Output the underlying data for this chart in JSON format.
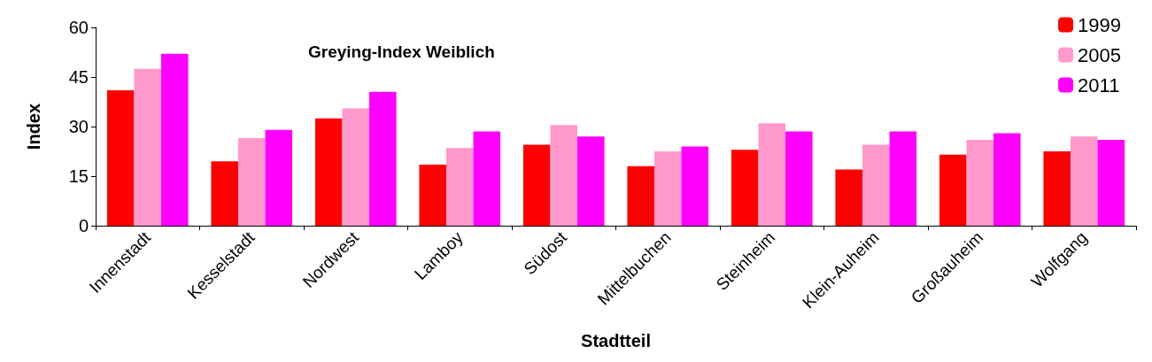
{
  "chart_data": {
    "type": "bar",
    "title": "Greying-Index Weiblich",
    "xlabel": "Stadtteil",
    "ylabel": "Index",
    "categories": [
      "Innenstadt",
      "Kesselstadt",
      "Nordwest",
      "Lamboy",
      "Südost",
      "Mittelbuchen",
      "Steinheim",
      "Klein-Auheim",
      "Großauheim",
      "Wolfgang"
    ],
    "series": [
      {
        "name": "1999",
        "color": "#ff0000",
        "values": [
          41,
          19.5,
          32.5,
          18.5,
          24.5,
          18,
          23,
          17,
          21.5,
          22.5
        ]
      },
      {
        "name": "2005",
        "color": "#ff99cc",
        "values": [
          47.5,
          26.5,
          35.5,
          23.5,
          30.5,
          22.5,
          31,
          24.5,
          26,
          27
        ]
      },
      {
        "name": "2011",
        "color": "#ff00ff",
        "values": [
          52,
          29,
          40.5,
          28.5,
          27,
          24,
          28.5,
          28.5,
          28,
          26
        ]
      }
    ],
    "ylim": [
      0,
      60
    ],
    "yticks": [
      0,
      15,
      30,
      45,
      60
    ],
    "grid": false,
    "legend": "top right"
  }
}
